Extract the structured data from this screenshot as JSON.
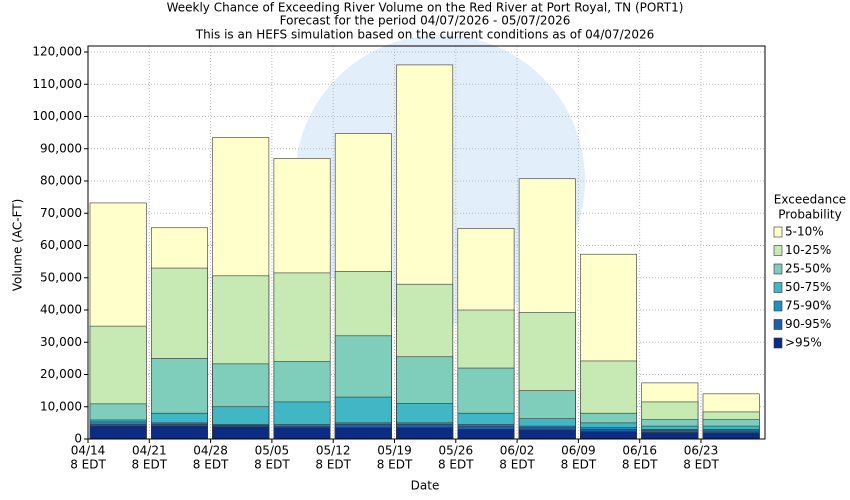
{
  "chart_data": {
    "type": "bar",
    "mode": "overlay",
    "title_lines": [
      "Weekly Chance of Exceeding River Volume on the Red River at Port Royal, TN (PORT1)",
      "Forecast for the period 04/07/2026 - 05/07/2026",
      "This is an HEFS simulation based on the current conditions as of 04/07/2026"
    ],
    "x_label": "Date",
    "y_label": "Volume (AC-FT)",
    "legend_title_lines": [
      "Exceedance",
      "Probability"
    ],
    "categories": [
      "04/14",
      "04/21",
      "04/28",
      "05/05",
      "05/12",
      "05/19",
      "05/26",
      "06/02",
      "06/09",
      "06/16",
      "06/23"
    ],
    "category_times": [
      "8 EDT",
      "8 EDT",
      "8 EDT",
      "8 EDT",
      "8 EDT",
      "8 EDT",
      "8 EDT",
      "8 EDT",
      "8 EDT",
      "8 EDT",
      "8 EDT"
    ],
    "series": [
      {
        "name": "5-10%",
        "color": "#ffffcc",
        "values": [
          73200,
          65500,
          93500,
          87000,
          94700,
          116000,
          65300,
          80700,
          57300,
          17400,
          14000
        ]
      },
      {
        "name": "10-25%",
        "color": "#c7e9b4",
        "values": [
          35000,
          53000,
          50600,
          51500,
          52000,
          48000,
          40000,
          39200,
          24200,
          11500,
          8400
        ]
      },
      {
        "name": "25-50%",
        "color": "#7fcdbb",
        "values": [
          10900,
          25000,
          23300,
          24000,
          32000,
          25500,
          22000,
          15000,
          8000,
          6000,
          6000
        ]
      },
      {
        "name": "50-75%",
        "color": "#41b6c4",
        "values": [
          5900,
          8000,
          10000,
          11500,
          13000,
          11000,
          8000,
          6300,
          5000,
          4000,
          4000
        ]
      },
      {
        "name": "75-90%",
        "color": "#1d91c0",
        "values": [
          5300,
          5000,
          4500,
          4500,
          5000,
          5000,
          4500,
          4000,
          3500,
          3000,
          3000
        ]
      },
      {
        "name": "90-95%",
        "color": "#225ea8",
        "values": [
          4600,
          4600,
          4200,
          4000,
          4500,
          4500,
          4000,
          3500,
          3000,
          2600,
          2500
        ]
      },
      {
        "name": ">95%",
        "color": "#0c2c84",
        "values": [
          4000,
          4000,
          3800,
          3500,
          3500,
          3500,
          3000,
          2800,
          2300,
          2000,
          1900
        ]
      }
    ],
    "ylim": [
      0,
      120000
    ],
    "yticks": [
      0,
      {
        "value": 10000,
        "label": "10,000"
      },
      {
        "value": 20000,
        "label": "20,000"
      },
      {
        "value": 30000,
        "label": "30,000"
      },
      {
        "value": 40000,
        "label": "40,000"
      },
      {
        "value": 50000,
        "label": "50,000"
      },
      {
        "value": 60000,
        "label": "60,000"
      },
      {
        "value": 70000,
        "label": "70,000"
      },
      {
        "value": 80000,
        "label": "80,000"
      },
      {
        "value": 90000,
        "label": "90,000"
      },
      {
        "value": 100000,
        "label": "100,000"
      },
      {
        "value": 110000,
        "label": "110,000"
      },
      {
        "value": 120000,
        "label": "120,000"
      }
    ],
    "grid": true
  }
}
